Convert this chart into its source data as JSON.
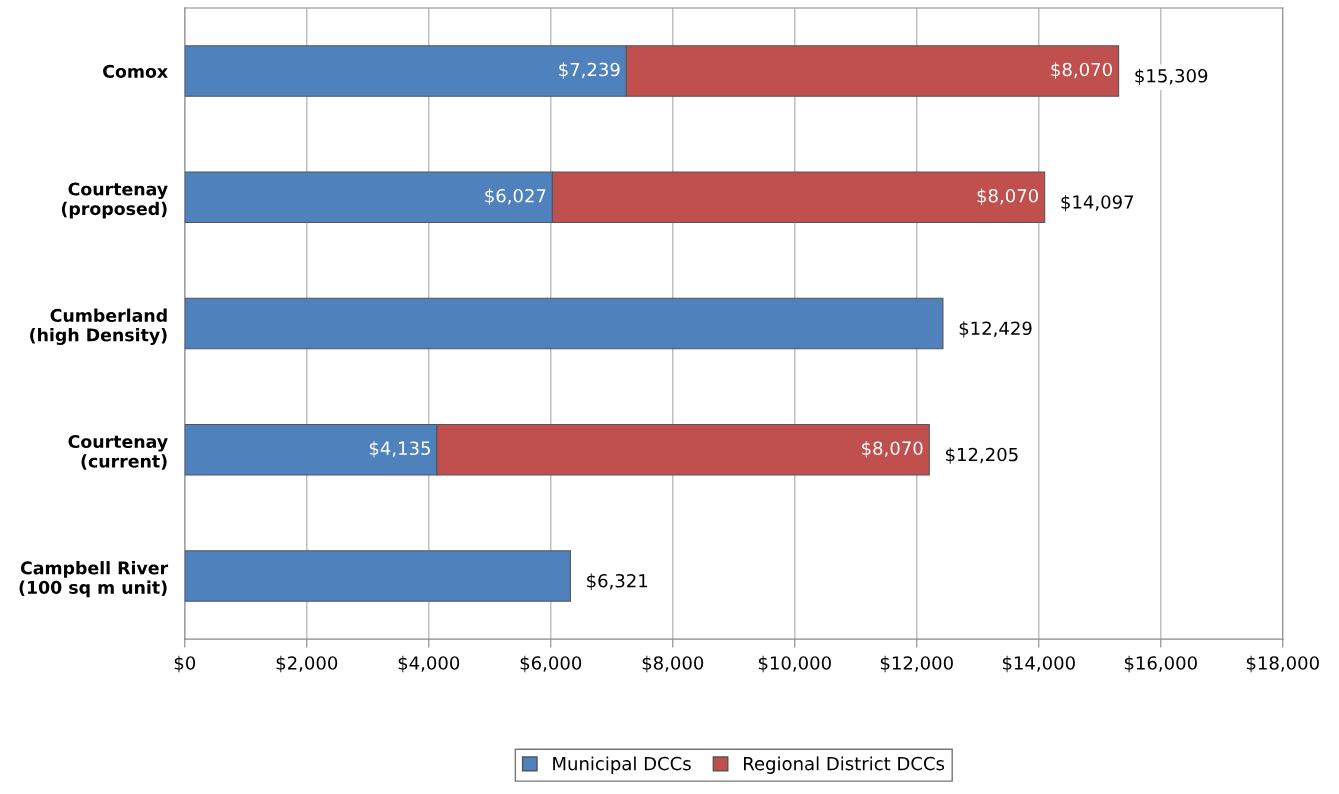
{
  "chart_data": {
    "type": "bar",
    "orientation": "horizontal",
    "stacked": true,
    "categories": [
      "Comox",
      "Courtenay\n(proposed)",
      "Cumberland\n(high Density)",
      "Courtenay\n(current)",
      "Campbell River\n(100 sq m unit)"
    ],
    "series": [
      {
        "name": "Municipal DCCs",
        "color": "#4f81bd",
        "values": [
          7239,
          6027,
          12429,
          4135,
          6321
        ],
        "value_labels": [
          "$7,239",
          "$6,027",
          null,
          "$4,135",
          null
        ]
      },
      {
        "name": "Regional District DCCs",
        "color": "#c0504d",
        "values": [
          8070,
          8070,
          null,
          8070,
          null
        ],
        "value_labels": [
          "$8,070",
          "$8,070",
          null,
          "$8,070",
          null
        ]
      }
    ],
    "totals": [
      "$15,309",
      "$14,097",
      "$12,429",
      "$12,205",
      "$6,321"
    ],
    "xlim": [
      0,
      18000
    ],
    "xticks": [
      {
        "value": 0,
        "label": "$0"
      },
      {
        "value": 2000,
        "label": "$2,000"
      },
      {
        "value": 4000,
        "label": "$4,000"
      },
      {
        "value": 6000,
        "label": "$6,000"
      },
      {
        "value": 8000,
        "label": "$8,000"
      },
      {
        "value": 10000,
        "label": "$10,000"
      },
      {
        "value": 12000,
        "label": "$12,000"
      },
      {
        "value": 14000,
        "label": "$14,000"
      },
      {
        "value": 16000,
        "label": "$16,000"
      },
      {
        "value": 18000,
        "label": "$18,000"
      }
    ],
    "grid": "x",
    "legend": "bottom"
  }
}
